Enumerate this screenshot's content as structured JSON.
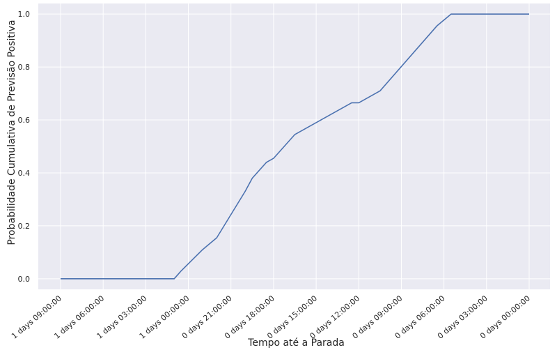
{
  "colors": {
    "plot_background": "#eaeaf2",
    "grid": "#ffffff",
    "series_line": "#4c72b0",
    "text": "#262626"
  },
  "chart_data": {
    "type": "line",
    "title": "",
    "xlabel": "Tempo até a Parada",
    "ylabel": "Probabilidade Cumulativa de Previsão Positiva",
    "x_axis": "time until stop, decreasing left to right",
    "x_tick_labels": [
      "1 days 09:00:00",
      "1 days 06:00:00",
      "1 days 03:00:00",
      "1 days 00:00:00",
      "0 days 21:00:00",
      "0 days 18:00:00",
      "0 days 15:00:00",
      "0 days 12:00:00",
      "0 days 09:00:00",
      "0 days 06:00:00",
      "0 days 03:00:00",
      "0 days 00:00:00"
    ],
    "y_ticks": [
      "0.0",
      "0.2",
      "0.4",
      "0.6",
      "0.8",
      "1.0"
    ],
    "ylim": [
      -0.04,
      1.04
    ],
    "grid": true,
    "x": [
      "1 days 09:00:00",
      "1 days 01:00:00",
      "1 days 00:30:00",
      "0 days 23:00:00",
      "0 days 22:00:00",
      "0 days 20:00:00",
      "0 days 19:30:00",
      "0 days 18:30:00",
      "0 days 18:00:00",
      "0 days 16:30:00",
      "0 days 12:30:00",
      "0 days 12:00:00",
      "0 days 10:30:00",
      "0 days 06:30:00",
      "0 days 05:30:00",
      "0 days 00:00:00"
    ],
    "series": [
      {
        "values": [
          0.0,
          0.0,
          0.03,
          0.11,
          0.155,
          0.33,
          0.38,
          0.44,
          0.455,
          0.545,
          0.665,
          0.665,
          0.71,
          0.955,
          1.0,
          1.0
        ]
      }
    ]
  }
}
